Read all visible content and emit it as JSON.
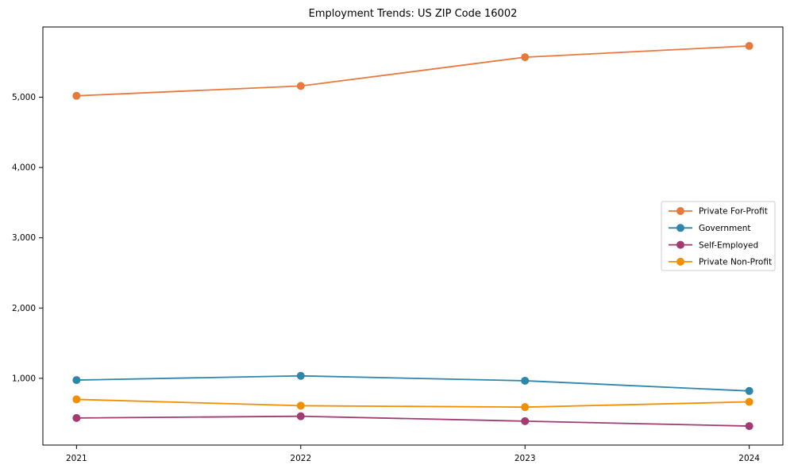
{
  "chart_data": {
    "type": "line",
    "title": "Employment Trends: US ZIP Code 16002",
    "categories": [
      "2021",
      "2022",
      "2023",
      "2024"
    ],
    "series": [
      {
        "name": "Private For-Profit",
        "color": "#E8793D",
        "values": [
          5020,
          5160,
          5570,
          5730
        ]
      },
      {
        "name": "Government",
        "color": "#2E86AB",
        "values": [
          975,
          1035,
          965,
          820
        ]
      },
      {
        "name": "Self-Employed",
        "color": "#A23B72",
        "values": [
          435,
          460,
          390,
          320
        ]
      },
      {
        "name": "Private Non-Profit",
        "color": "#F18F01",
        "values": [
          700,
          610,
          590,
          665
        ]
      }
    ],
    "xlabel": "",
    "ylabel": "",
    "ylim": [
      50,
      6000
    ],
    "yticks": [
      1000,
      2000,
      3000,
      4000,
      5000
    ],
    "grid": false,
    "legend_position": "center right",
    "axis_color": "#000000",
    "text_color": "#000000",
    "background": "#ffffff",
    "legend_border_color": "#cccccc"
  }
}
